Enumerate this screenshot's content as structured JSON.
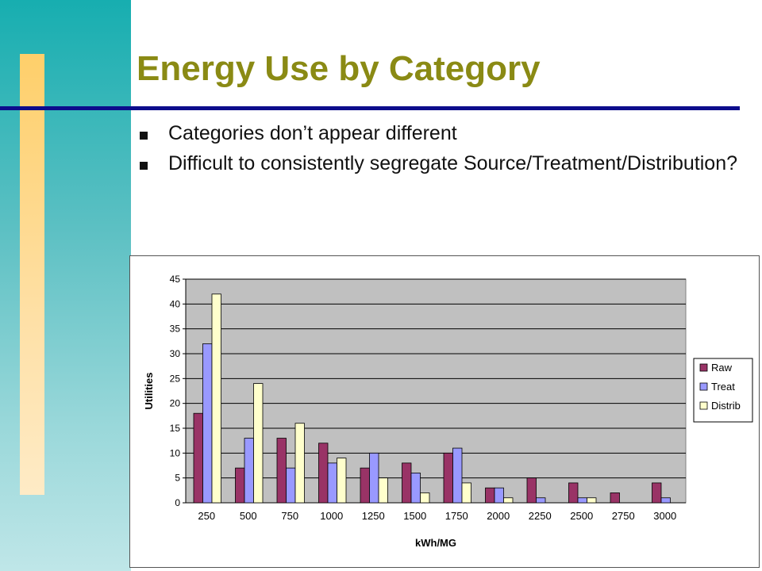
{
  "slide": {
    "title": "Energy Use by Category",
    "bullets": [
      "Categories don’t appear different",
      "Difficult to consistently segregate Source/Treatment/Distribution?"
    ]
  },
  "colors": {
    "title": "#8a8a14",
    "rule": "#0c0c8c",
    "plot_bg": "#c0c0c0",
    "raw": "#993366",
    "treat": "#9999ff",
    "distrib": "#ffffcc"
  },
  "chart_data": {
    "type": "bar",
    "categories": [
      "250",
      "500",
      "750",
      "1000",
      "1250",
      "1500",
      "1750",
      "2000",
      "2250",
      "2500",
      "2750",
      "3000"
    ],
    "series": [
      {
        "name": "Raw",
        "values": [
          18,
          7,
          13,
          12,
          7,
          8,
          10,
          3,
          5,
          4,
          2,
          4
        ]
      },
      {
        "name": "Treat",
        "values": [
          32,
          13,
          7,
          8,
          10,
          6,
          11,
          3,
          1,
          1,
          0,
          1
        ]
      },
      {
        "name": "Distrib",
        "values": [
          42,
          24,
          16,
          9,
          5,
          2,
          4,
          1,
          0,
          1,
          0,
          0
        ]
      }
    ],
    "xlabel": "kWh/MG",
    "ylabel": "Utilities",
    "ylim": [
      0,
      45
    ],
    "yticks": [
      0,
      5,
      10,
      15,
      20,
      25,
      30,
      35,
      40,
      45
    ],
    "grid": true,
    "legend": "right"
  }
}
